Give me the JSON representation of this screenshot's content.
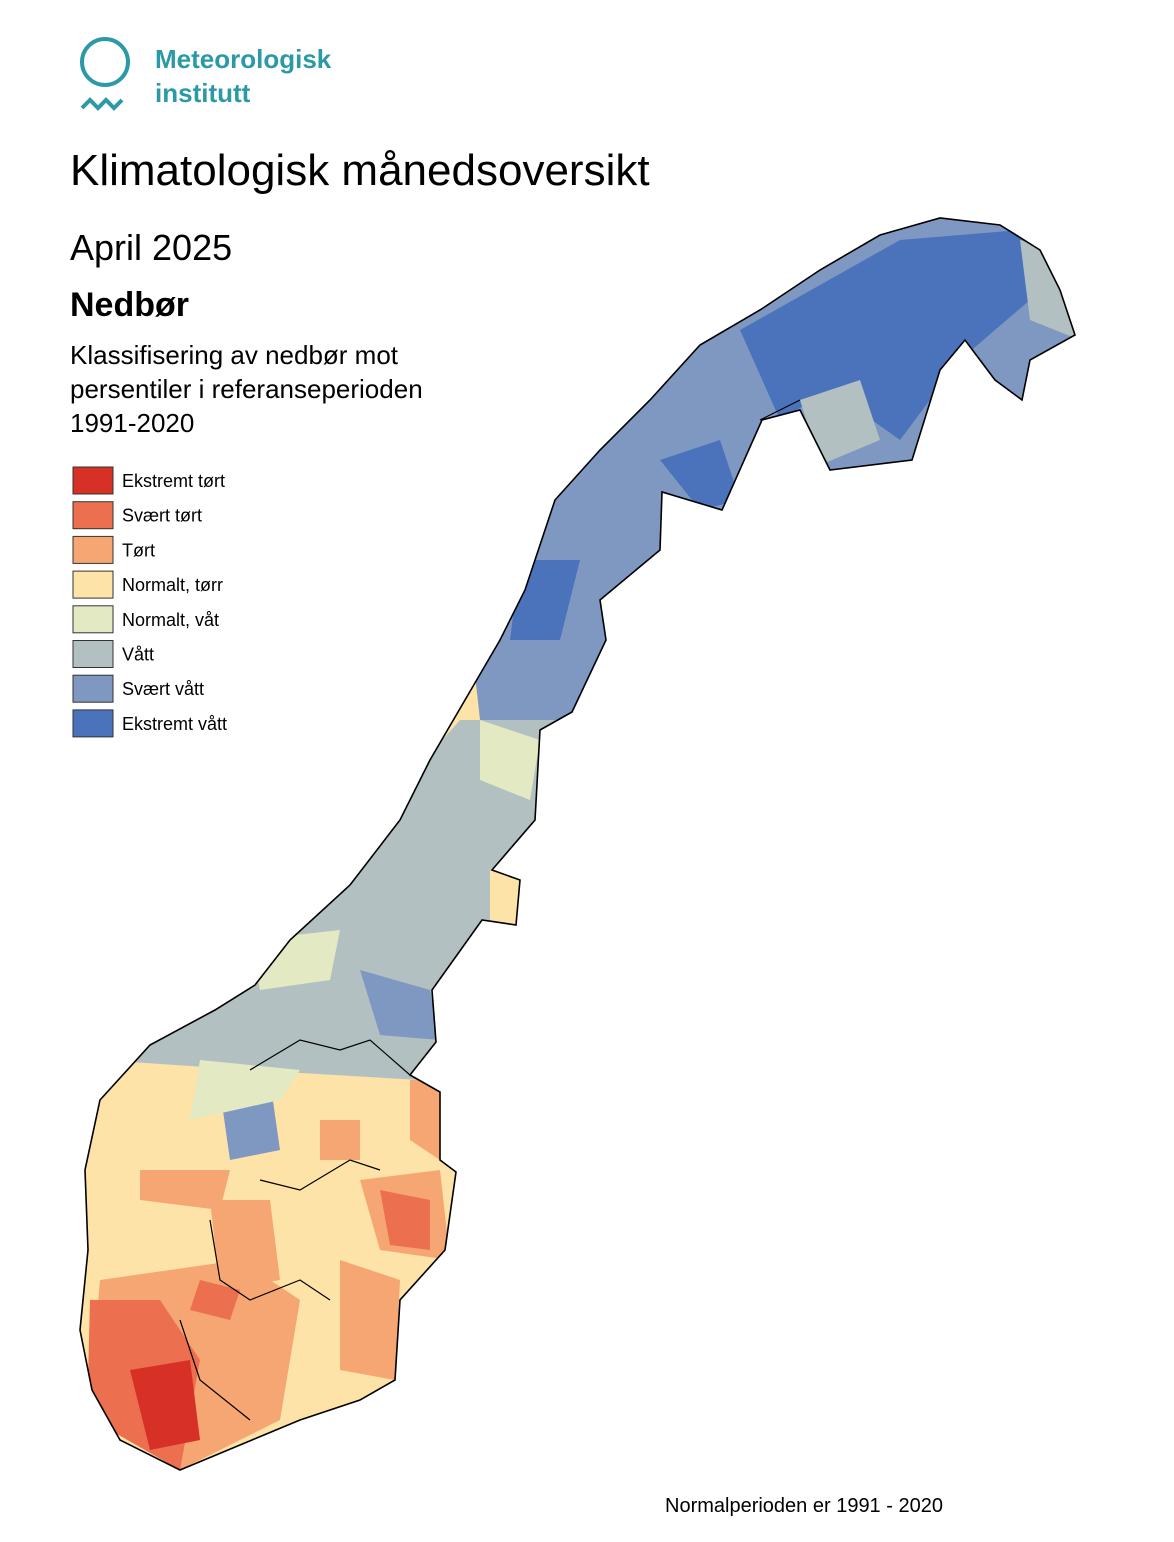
{
  "logo": {
    "line1": "Meteorologisk",
    "line2": "institutt"
  },
  "title": "Klimatologisk månedsoversikt",
  "period": "April 2025",
  "element": "Nedbør",
  "description": [
    "Klassifisering av nedbør mot",
    "persentiler i referanseperioden",
    "1991-2020"
  ],
  "legend": [
    {
      "label": "Ekstremt tørt",
      "color": "#d73027"
    },
    {
      "label": "Svært tørt",
      "color": "#ec6f4f"
    },
    {
      "label": "Tørt",
      "color": "#f6a673"
    },
    {
      "label": "Normalt, tørr",
      "color": "#fde3a7"
    },
    {
      "label": "Normalt, våt",
      "color": "#e2e9c3"
    },
    {
      "label": "Vått",
      "color": "#b2c0c1"
    },
    {
      "label": "Svært vått",
      "color": "#7f98c2"
    },
    {
      "label": "Ekstremt vått",
      "color": "#4a73bb"
    }
  ],
  "footer": "Normalperioden er 1991 - 2020"
}
